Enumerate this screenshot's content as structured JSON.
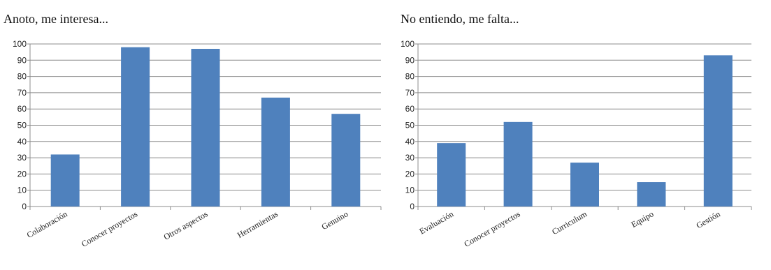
{
  "chart_data": [
    {
      "type": "bar",
      "title": "Anoto, me interesa...",
      "categories": [
        "Colaboración",
        "Conocer proyectos",
        "Otros aspectos",
        "Herramientas",
        "Genuino"
      ],
      "values": [
        32,
        98,
        97,
        67,
        57
      ],
      "ylim": [
        0,
        100
      ],
      "yticks": [
        0,
        10,
        20,
        30,
        40,
        50,
        60,
        70,
        80,
        90,
        100
      ],
      "grid": true,
      "bar_color": "#4f81bd"
    },
    {
      "type": "bar",
      "title": "No entiendo, me falta...",
      "categories": [
        "Evaluación",
        "Conocer proyectos",
        "Curriculum",
        "Equipo",
        "Gestión"
      ],
      "values": [
        39,
        52,
        27,
        15,
        93
      ],
      "ylim": [
        0,
        100
      ],
      "yticks": [
        0,
        10,
        20,
        30,
        40,
        50,
        60,
        70,
        80,
        90,
        100
      ],
      "grid": true,
      "bar_color": "#4f81bd"
    }
  ]
}
